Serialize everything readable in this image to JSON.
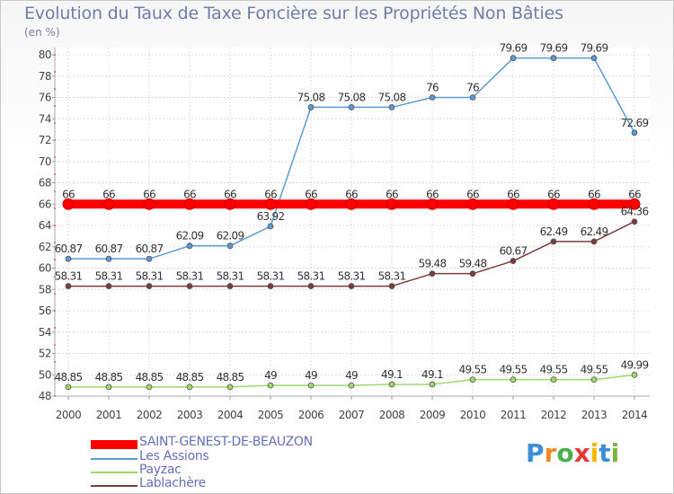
{
  "header": {
    "title": "Evolution du Taux de Taxe Foncière sur les Propriétés Non Bâties",
    "unit": "(en %)"
  },
  "brand": {
    "letters": [
      "P",
      "r",
      "o",
      "x",
      "i",
      "t",
      "i"
    ],
    "colors": [
      "#3a8fd8",
      "#f08a24",
      "#4caf50",
      "#e53935",
      "#f5b800",
      "#3a8fd8",
      "#7cb342"
    ]
  },
  "chart_data": {
    "type": "line",
    "x": [
      "2000",
      "2001",
      "2002",
      "2003",
      "2004",
      "2005",
      "2006",
      "2007",
      "2008",
      "2009",
      "2010",
      "2011",
      "2012",
      "2013",
      "2014"
    ],
    "ylim": [
      48,
      80
    ],
    "yticks": [
      48,
      50,
      52,
      54,
      56,
      58,
      60,
      62,
      64,
      66,
      68,
      70,
      72,
      74,
      76,
      78,
      80
    ],
    "grid": true,
    "legend_position": "bottom-left",
    "series": [
      {
        "name": "SAINT-GENEST-DE-BEAUZON",
        "color": "#ff0000",
        "values": [
          66,
          66,
          66,
          66,
          66,
          66,
          66,
          66,
          66,
          66,
          66,
          66,
          66,
          66,
          66
        ],
        "labels": [
          "66",
          "66",
          "66",
          "66",
          "66",
          "66",
          "66",
          "66",
          "66",
          "66",
          "66",
          "66",
          "66",
          "66",
          "66"
        ]
      },
      {
        "name": "Les Assions",
        "color": "#5b9bd5",
        "values": [
          60.87,
          60.87,
          60.87,
          62.09,
          62.09,
          63.92,
          75.08,
          75.08,
          75.08,
          76,
          76,
          79.69,
          79.69,
          79.69,
          72.69
        ],
        "labels": [
          "60.87",
          "60.87",
          "60.87",
          "62.09",
          "62.09",
          "63.92",
          "75.08",
          "75.08",
          "75.08",
          "76",
          "76",
          "79.69",
          "79.69",
          "79.69",
          "72.69"
        ]
      },
      {
        "name": "Payzac",
        "color": "#9ed86b",
        "values": [
          48.85,
          48.85,
          48.85,
          48.85,
          48.85,
          49,
          49,
          49,
          49.1,
          49.1,
          49.55,
          49.55,
          49.55,
          49.55,
          49.99
        ],
        "labels": [
          "48.85",
          "48.85",
          "48.85",
          "48.85",
          "48.85",
          "49",
          "49",
          "49",
          "49.1",
          "49.1",
          "49.55",
          "49.55",
          "49.55",
          "49.55",
          "49.99"
        ]
      },
      {
        "name": "Lablachère",
        "color": "#7a3b3b",
        "values": [
          58.31,
          58.31,
          58.31,
          58.31,
          58.31,
          58.31,
          58.31,
          58.31,
          58.31,
          59.48,
          59.48,
          60.67,
          62.49,
          62.49,
          64.36
        ],
        "labels": [
          "58.31",
          "58.31",
          "58.31",
          "58.31",
          "58.31",
          "58.31",
          "58.31",
          "58.31",
          "58.31",
          "59.48",
          "59.48",
          "60.67",
          "62.49",
          "62.49",
          "64.36"
        ]
      }
    ]
  }
}
